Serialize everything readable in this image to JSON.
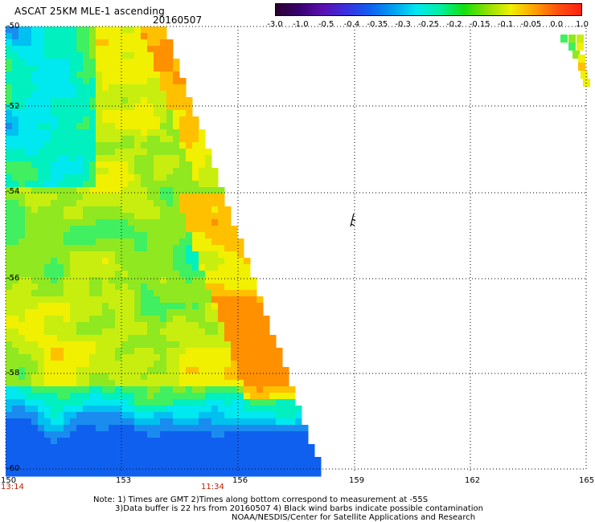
{
  "header": {
    "title": "ASCAT 25KM MLE-1 ascending",
    "date": "20160507"
  },
  "colorbar": {
    "ticks": [
      "-3.0",
      "-1.0",
      "-0.5",
      "-0.4",
      "-0.35",
      "-0.3",
      "-0.25",
      "-0.2",
      "-0.15",
      "-0.1",
      "-0.05",
      "0.0",
      "1.0"
    ],
    "colors": [
      "#2a0030",
      "#3a0070",
      "#5a10b0",
      "#3a30e0",
      "#1060f0",
      "#00a0f0",
      "#00e8f0",
      "#00f0a0",
      "#10e010",
      "#90e000",
      "#f0f000",
      "#ffa000",
      "#ff5010",
      "#ff2010"
    ]
  },
  "axes": {
    "lat_labels": [
      "-50",
      "-52",
      "-54",
      "-56",
      "-58",
      "-60"
    ],
    "lon_labels": [
      "150",
      "153",
      "156",
      "159",
      "162",
      "165"
    ],
    "time_labels": [
      "13:14",
      "11:34"
    ]
  },
  "notes": [
    "Note: 1) Times are GMT 2)Times along bottom correspond to measurement at -55S",
    "3)Data buffer is 22 hrs from 20160507 4) Black wind barbs indicate possible contamination",
    "NOAA/NESDIS/Center for Satellite Applications and Research"
  ],
  "map": {
    "lat_range": [
      -50,
      -60
    ],
    "lon_range": [
      150,
      165
    ]
  }
}
